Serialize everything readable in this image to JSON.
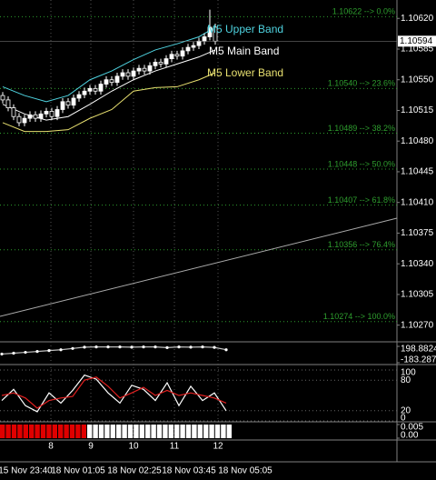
{
  "chart_data": [
    {
      "type": "candlestick",
      "open": [
        1.10532,
        1.10527,
        1.10518,
        1.10508,
        1.10501,
        1.10506,
        1.1051,
        1.10506,
        1.10511,
        1.10514,
        1.10508,
        1.10516,
        1.10525,
        1.10521,
        1.10529,
        1.10533,
        1.10537,
        1.1054,
        1.10537,
        1.10545,
        1.1055,
        1.10547,
        1.10554,
        1.10558,
        1.10554,
        1.1056,
        1.10563,
        1.1056,
        1.10566,
        1.1057,
        1.10568,
        1.10574,
        1.10579,
        1.10577,
        1.10583,
        1.10587,
        1.10589,
        1.10594,
        1.10599,
        1.1061
      ],
      "high": [
        1.10536,
        1.10531,
        1.10522,
        1.10512,
        1.1051,
        1.10514,
        1.10514,
        1.10515,
        1.10518,
        1.10518,
        1.1052,
        1.10529,
        1.10529,
        1.10533,
        1.10537,
        1.10541,
        1.10544,
        1.10544,
        1.10549,
        1.10554,
        1.10554,
        1.10558,
        1.10562,
        1.10562,
        1.10564,
        1.10567,
        1.10567,
        1.1057,
        1.10574,
        1.10574,
        1.10578,
        1.10583,
        1.10583,
        1.10587,
        1.10591,
        1.10593,
        1.10598,
        1.10603,
        1.1063,
        1.10614
      ],
      "low": [
        1.10523,
        1.10514,
        1.10504,
        1.10497,
        1.10497,
        1.10502,
        1.10502,
        1.10502,
        1.10507,
        1.10504,
        1.10504,
        1.10512,
        1.10517,
        1.10517,
        1.10525,
        1.10529,
        1.10533,
        1.10533,
        1.10533,
        1.10541,
        1.10543,
        1.10543,
        1.1055,
        1.1055,
        1.1055,
        1.10556,
        1.10556,
        1.10556,
        1.10562,
        1.10564,
        1.10564,
        1.1057,
        1.10573,
        1.10573,
        1.10579,
        1.10583,
        1.10585,
        1.1059,
        1.10595,
        1.1059
      ],
      "close": [
        1.10527,
        1.10518,
        1.10508,
        1.10501,
        1.10506,
        1.1051,
        1.10506,
        1.10511,
        1.10514,
        1.10508,
        1.10516,
        1.10525,
        1.10521,
        1.10529,
        1.10533,
        1.10537,
        1.1054,
        1.10537,
        1.10545,
        1.1055,
        1.10547,
        1.10554,
        1.10558,
        1.10554,
        1.1056,
        1.10563,
        1.1056,
        1.10566,
        1.1057,
        1.10568,
        1.10574,
        1.10579,
        1.10577,
        1.10583,
        1.10587,
        1.10589,
        1.10594,
        1.10599,
        1.1061,
        1.10594
      ],
      "color": "#ffffff",
      "ylim": [
        1.10252,
        1.10641
      ],
      "yticks": [
        {
          "value": 1.1062,
          "label": "1.10620"
        },
        1.10585,
        {
          "value": 1.1055,
          "label": "1.10550"
        },
        1.10515,
        {
          "value": 1.1048,
          "label": "1.10480"
        },
        1.10445,
        {
          "value": 1.1041,
          "label": "1.10410"
        },
        1.10375,
        {
          "value": 1.1034,
          "label": "1.10340"
        },
        1.10305,
        {
          "value": 1.1027,
          "label": "1.10270"
        }
      ],
      "last_price": 1.10594,
      "bands": {
        "x": [
          0,
          4,
          8,
          12,
          16,
          20,
          24,
          28,
          32,
          36,
          39
        ],
        "series": [
          {
            "name": "M5 Upper Band",
            "color": "#4fd3e0",
            "values": [
              1.10542,
              1.10532,
              1.10525,
              1.10532,
              1.1055,
              1.1056,
              1.10573,
              1.10584,
              1.10591,
              1.10599,
              1.1061
            ]
          },
          {
            "name": "M5 Main Band",
            "color": "#ffffff",
            "values": [
              1.10522,
              1.10511,
              1.10504,
              1.10508,
              1.10522,
              1.10537,
              1.1055,
              1.1056,
              1.10568,
              1.10576,
              1.10584
            ]
          },
          {
            "name": "M5 Lower Band",
            "color": "#e8e070",
            "values": [
              1.10501,
              1.10491,
              1.10491,
              1.10493,
              1.10506,
              1.10516,
              1.10537,
              1.10541,
              1.10542,
              1.1055,
              1.10558
            ]
          }
        ]
      },
      "fib_levels": [
        {
          "value": 1.10622,
          "label": "1.10622 --> 0.0%"
        },
        {
          "value": 1.1054,
          "label": "1.10540 --> 23.6%"
        },
        {
          "value": 1.10489,
          "label": "1.10489 --> 38.2%"
        },
        {
          "value": 1.10448,
          "label": "1.10448 --> 50.0%"
        },
        {
          "value": 1.10407,
          "label": "1.10407 --> 61.8%"
        },
        {
          "value": 1.10356,
          "label": "1.10356 --> 76.4%"
        },
        {
          "value": 1.10274,
          "label": "1.10274 --> 100.0%"
        }
      ],
      "fib_color": "#2e9e2e",
      "trend_line": [
        1.1028,
        1.10392
      ],
      "hour_labels": [
        8,
        9,
        10,
        11,
        12
      ],
      "time_labels": [
        "15 Nov 23:40",
        "18 Nov 01:05",
        "18 Nov 02:25",
        "18 Nov 03:45",
        "18 Nov 05:05"
      ]
    },
    {
      "type": "line",
      "series": [
        {
          "color": "#c0c0c0",
          "values": [
            20,
            40,
            60,
            80,
            100,
            120,
            150,
            180,
            185,
            185,
            185,
            180,
            185,
            185,
            170,
            185,
            180,
            185,
            175,
            120
          ]
        }
      ],
      "ylim": [
        -183.2873,
        198.8824
      ],
      "yticks": [
        198.8824,
        -183.2873
      ]
    },
    {
      "type": "line",
      "series": [
        {
          "color": "#ffffff",
          "values": [
            40,
            62,
            30,
            18,
            55,
            35,
            60,
            90,
            82,
            55,
            35,
            70,
            62,
            40,
            75,
            30,
            68,
            40,
            55,
            20
          ]
        },
        {
          "color": "#e02020",
          "values": [
            50,
            55,
            45,
            25,
            40,
            45,
            48,
            80,
            86,
            68,
            45,
            55,
            66,
            50,
            60,
            50,
            55,
            50,
            45,
            35
          ]
        }
      ],
      "ylim": [
        0,
        100
      ],
      "yticks": [
        100,
        80,
        20,
        0
      ],
      "grid": true
    },
    {
      "type": "bar",
      "series": [
        {
          "color": "#e00000",
          "values": [
            0.005,
            0.005,
            0.005,
            0.005,
            0.005,
            0.005,
            0.005,
            0.005,
            0.005,
            0.005,
            0.005,
            0.005,
            0.005,
            0.005,
            0.005,
            null,
            null,
            null,
            null,
            null,
            null,
            null,
            null,
            null,
            null,
            null,
            null,
            null,
            null,
            null,
            null,
            null,
            null,
            null,
            null,
            null,
            null,
            null,
            null,
            null
          ]
        },
        {
          "color": "#ffffff",
          "values": [
            null,
            null,
            null,
            null,
            null,
            null,
            null,
            null,
            null,
            null,
            null,
            null,
            null,
            null,
            null,
            0.005,
            0.005,
            0.005,
            0.005,
            0.005,
            0.005,
            0.005,
            0.005,
            0.005,
            0.005,
            0.005,
            0.005,
            0.005,
            0.005,
            0.005,
            0.005,
            0.005,
            0.005,
            0.005,
            0.005,
            0.005,
            0.005,
            0.005,
            0.005,
            0.005
          ]
        }
      ],
      "ylim": [
        0,
        0.005
      ],
      "yticks": [
        0.005,
        {
          "value": 0,
          "label": "0.00"
        }
      ]
    }
  ]
}
